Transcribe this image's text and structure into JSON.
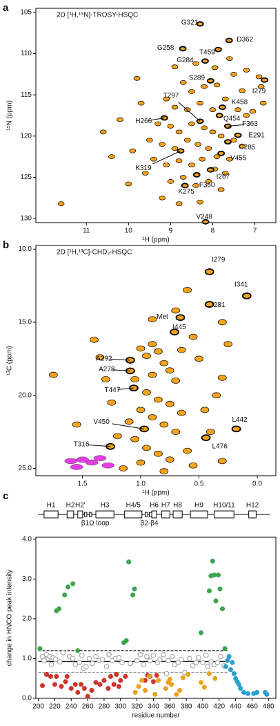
{
  "chart_data": [
    {
      "type": "spectrum",
      "panel_label": "a",
      "title": "2D [¹H,¹⁵N]-TROSY-HSQC",
      "x_label": "¹H (ppm)",
      "y_label": "¹⁵N (ppm)",
      "xlim": [
        12.2,
        6.5
      ],
      "xticks": [
        11,
        10,
        9,
        8,
        7
      ],
      "ylim": [
        104.5,
        130.5
      ],
      "yticks": [
        105,
        110,
        115,
        120,
        125,
        130
      ],
      "y_inverted": true,
      "peak_color": "#f5a31a",
      "outline_color": "#000",
      "peaks": [
        [
          8.5,
          114.6
        ],
        [
          8.2,
          114.0
        ],
        [
          7.9,
          113.8
        ],
        [
          7.5,
          112.5
        ],
        [
          7.2,
          112.0
        ],
        [
          6.9,
          112.8
        ],
        [
          6.85,
          114.0
        ],
        [
          8.7,
          113.5
        ],
        [
          9.1,
          115.5
        ],
        [
          8.9,
          116.5
        ],
        [
          8.6,
          116.8
        ],
        [
          8.3,
          116.0
        ],
        [
          8.0,
          116.8
        ],
        [
          7.7,
          115.5
        ],
        [
          7.4,
          116.8
        ],
        [
          7.2,
          117.5
        ],
        [
          9.3,
          118.5
        ],
        [
          9.0,
          118.8
        ],
        [
          8.8,
          119.5
        ],
        [
          8.5,
          118.5
        ],
        [
          8.2,
          119.0
        ],
        [
          8.0,
          119.5
        ],
        [
          7.8,
          120.0
        ],
        [
          7.5,
          120.5
        ],
        [
          7.3,
          121.2
        ],
        [
          9.5,
          120.5
        ],
        [
          9.2,
          121.0
        ],
        [
          8.9,
          121.5
        ],
        [
          8.6,
          120.5
        ],
        [
          8.35,
          121.0
        ],
        [
          8.1,
          121.5
        ],
        [
          7.9,
          122.5
        ],
        [
          7.6,
          122.8
        ],
        [
          9.4,
          122.8
        ],
        [
          9.1,
          123.5
        ],
        [
          8.8,
          123.0
        ],
        [
          8.5,
          123.5
        ],
        [
          8.25,
          122.8
        ],
        [
          7.95,
          124.0
        ],
        [
          7.7,
          124.5
        ],
        [
          9.6,
          124.5
        ],
        [
          9.0,
          125.5
        ],
        [
          8.7,
          125.0
        ],
        [
          8.4,
          126.0
        ],
        [
          8.1,
          125.5
        ],
        [
          7.8,
          126.5
        ],
        [
          10.2,
          118.0
        ],
        [
          10.6,
          119.5
        ],
        [
          11.6,
          128.2
        ],
        [
          10.0,
          125.8
        ],
        [
          9.8,
          113.0
        ],
        [
          9.7,
          116.0
        ],
        [
          9.9,
          121.8
        ],
        [
          10.4,
          122.5
        ],
        [
          8.3,
          128.0
        ],
        [
          8.8,
          128.2
        ],
        [
          9.2,
          127.5
        ],
        [
          7.05,
          117.0
        ],
        [
          6.8,
          116.0
        ],
        [
          7.6,
          110.6
        ],
        [
          7.95,
          111.7
        ],
        [
          8.4,
          111.2
        ],
        [
          8.9,
          111.6
        ],
        [
          7.3,
          114.5
        ]
      ],
      "annotations": [
        {
          "label": "G321",
          "x": 8.3,
          "y": 106.4
        },
        {
          "label": "D362",
          "x": 7.61,
          "y": 108.4
        },
        {
          "label": "T459",
          "x": 7.87,
          "y": 109.5
        },
        {
          "label": "G258",
          "x": 8.71,
          "y": 109.4
        },
        {
          "label": "G284",
          "x": 8.18,
          "y": 110.9
        },
        {
          "label": "S289",
          "x": 8.05,
          "y": 113.3
        },
        {
          "label": "I279",
          "x": 6.77,
          "y": 113.2
        },
        {
          "label": "K458",
          "x": 7.77,
          "y": 116.5
        },
        {
          "label": "T297",
          "x": 8.3,
          "y": 118.2
        },
        {
          "label": "Q454",
          "x": 7.84,
          "y": 117.5
        },
        {
          "label": "F363",
          "x": 7.64,
          "y": 118.8
        },
        {
          "label": "H266",
          "x": 9.15,
          "y": 117.8
        },
        {
          "label": "E291",
          "x": 7.4,
          "y": 119.9
        },
        {
          "label": "C285",
          "x": 7.64,
          "y": 120.7
        },
        {
          "label": "V455",
          "x": 7.8,
          "y": 122.1
        },
        {
          "label": "K319",
          "x": 8.76,
          "y": 121.8
        },
        {
          "label": "I267",
          "x": 8.05,
          "y": 124.1
        },
        {
          "label": "F360",
          "x": 8.38,
          "y": 124.7
        },
        {
          "label": "K275",
          "x": 8.66,
          "y": 126.0
        },
        {
          "label": "V248",
          "x": 8.17,
          "y": 130.4
        }
      ]
    },
    {
      "type": "spectrum",
      "panel_label": "b",
      "title": "2D [¹H,¹³C]-CHD₂-HSQC",
      "x_label": "¹H (ppm)",
      "y_label": "¹³C (ppm)",
      "xlim": [
        1.9,
        -0.16
      ],
      "xticks": [
        1.5,
        {
          "value": 1,
          "label": "1.0"
        },
        0.5,
        {
          "value": 0,
          "label": "0.0"
        }
      ],
      "ylim": [
        9.75,
        25.5
      ],
      "yticks": [
        {
          "value": 10,
          "label": "10.0"
        },
        {
          "value": 15,
          "label": "15.0"
        },
        {
          "value": 20,
          "label": "20.0"
        },
        {
          "value": 25,
          "label": "25.0"
        }
      ],
      "y_inverted": true,
      "peak_color": "#f5a31a",
      "outline_color": "#000",
      "minor_color": "#e040e0",
      "peaks": [
        [
          0.9,
          16.5
        ],
        [
          0.85,
          17.0
        ],
        [
          0.95,
          17.3
        ],
        [
          1.0,
          16.8
        ],
        [
          0.8,
          17.8
        ],
        [
          0.75,
          18.3
        ],
        [
          0.9,
          18.6
        ],
        [
          1.05,
          18.9
        ],
        [
          0.7,
          19.0
        ],
        [
          0.95,
          19.8
        ],
        [
          0.85,
          20.3
        ],
        [
          0.75,
          20.6
        ],
        [
          1.0,
          21.0
        ],
        [
          0.9,
          21.5
        ],
        [
          0.8,
          22.0
        ],
        [
          0.7,
          22.5
        ],
        [
          0.65,
          21.2
        ],
        [
          1.1,
          21.8
        ],
        [
          1.2,
          22.8
        ],
        [
          1.05,
          23.0
        ],
        [
          0.95,
          23.6
        ],
        [
          0.85,
          24.0
        ],
        [
          0.75,
          24.4
        ],
        [
          0.6,
          23.8
        ],
        [
          0.55,
          24.8
        ],
        [
          1.0,
          24.6
        ],
        [
          1.15,
          25.0
        ],
        [
          0.45,
          21.0
        ],
        [
          0.35,
          20.0
        ],
        [
          0.3,
          18.8
        ],
        [
          0.25,
          16.5
        ],
        [
          0.3,
          15.0
        ],
        [
          0.6,
          12.8
        ],
        [
          0.7,
          14.2
        ],
        [
          1.3,
          18.9
        ],
        [
          1.35,
          17.4
        ],
        [
          1.4,
          16.2
        ],
        [
          1.75,
          18.6
        ],
        [
          1.55,
          22.0
        ],
        [
          0.9,
          14.8
        ],
        [
          0.55,
          16.0
        ],
        [
          0.5,
          17.5
        ],
        [
          0.4,
          22.5
        ],
        [
          0.3,
          24.5
        ],
        [
          0.8,
          25.2
        ],
        [
          1.25,
          20.5
        ],
        [
          0.65,
          16.9
        ]
      ],
      "minor_peaks": [
        [
          1.5,
          24.4
        ],
        [
          1.42,
          24.6
        ],
        [
          1.35,
          24.3
        ],
        [
          1.55,
          24.9
        ],
        [
          1.28,
          24.8
        ],
        [
          1.6,
          24.5
        ]
      ],
      "annotations": [
        {
          "label": "I279",
          "x": 0.41,
          "y": 11.55
        },
        {
          "label": "I341",
          "x": 0.09,
          "y": 13.2
        },
        {
          "label": "I281",
          "x": 0.41,
          "y": 13.78
        },
        {
          "label": "Met",
          "x": 0.66,
          "y": 14.68
        },
        {
          "label": "I445",
          "x": 0.71,
          "y": 15.67
        },
        {
          "label": "A292",
          "x": 1.09,
          "y": 17.6
        },
        {
          "label": "A278",
          "x": 1.09,
          "y": 18.33
        },
        {
          "label": "T447",
          "x": 1.06,
          "y": 19.5
        },
        {
          "label": "V450",
          "x": 0.97,
          "y": 22.3
        },
        {
          "label": "T316",
          "x": 1.26,
          "y": 23.5
        },
        {
          "label": "L442",
          "x": 0.18,
          "y": 22.3
        },
        {
          "label": "L476",
          "x": 0.44,
          "y": 22.9
        }
      ]
    },
    {
      "type": "scatter",
      "panel_label": "c",
      "x_label": "residue number",
      "y_label": "change in HNCO peak intensity",
      "xlim": [
        197,
        489
      ],
      "xticks": [
        200,
        220,
        240,
        260,
        280,
        300,
        320,
        340,
        360,
        380,
        400,
        420,
        440,
        460,
        480
      ],
      "ylim": [
        0,
        4.05
      ],
      "yticks": [
        {
          "value": 0,
          "label": "0.0"
        },
        {
          "value": 1,
          "label": "1.0"
        },
        {
          "value": 2,
          "label": "2.0"
        },
        {
          "value": 3,
          "label": "3.0"
        },
        {
          "value": 4,
          "label": "4.0"
        }
      ],
      "reference_range": [
        200,
        430
      ],
      "reference_lines": [
        {
          "value": 1.2,
          "style": "dashed",
          "color": "#000"
        },
        {
          "value": 0.93,
          "style": "solid",
          "color": "#000"
        },
        {
          "value": 0.65,
          "style": "dashed",
          "color": "#999"
        }
      ],
      "structure": {
        "range": [
          200,
          482
        ],
        "helices": [
          {
            "label": "H1",
            "start": 207,
            "end": 224
          },
          {
            "label": "H2",
            "start": 235,
            "end": 243
          },
          {
            "label": "H2'",
            "start": 248,
            "end": 254
          },
          {
            "label": "H3",
            "start": 270,
            "end": 292
          },
          {
            "label": "H4/5",
            "start": 305,
            "end": 326
          },
          {
            "label": "H6",
            "start": 338,
            "end": 344
          },
          {
            "label": "H7",
            "start": 350,
            "end": 360
          },
          {
            "label": "H8",
            "start": 364,
            "end": 375
          },
          {
            "label": "H9",
            "start": 385,
            "end": 406
          },
          {
            "label": "H10/11",
            "start": 414,
            "end": 438
          },
          {
            "label": "H12",
            "start": 456,
            "end": 465
          }
        ],
        "strands": [
          {
            "start": 256,
            "end": 259
          },
          {
            "start": 262,
            "end": 265
          },
          {
            "start": 330,
            "end": 333
          },
          {
            "start": 335,
            "end": 338
          }
        ],
        "labels": [
          {
            "label": "β1",
            "x": 257
          },
          {
            "label": "Ω loop",
            "x": 274
          },
          {
            "label": "β2-β4",
            "x": 335
          }
        ]
      },
      "series": [
        {
          "color": "#aaa",
          "marker": "open",
          "x": [
            205,
            207,
            210,
            212,
            214,
            216,
            218,
            221,
            226,
            230,
            238,
            242,
            245,
            250,
            253,
            255,
            258,
            262,
            266,
            270,
            274,
            278,
            283,
            286,
            290,
            294,
            298,
            302,
            312,
            320,
            324,
            328,
            332,
            336,
            340,
            345,
            348,
            352,
            356,
            358,
            363,
            366,
            370,
            374,
            378,
            384,
            388,
            392,
            395,
            400,
            404,
            406,
            410,
            414,
            418,
            422,
            426
          ],
          "values": [
            1.05,
            0.95,
            1.1,
            1.0,
            1.05,
            0.85,
            1.02,
            0.98,
            0.92,
            1.15,
            1.05,
            1.0,
            0.85,
            0.9,
            1.08,
            0.75,
            0.8,
            1.0,
            0.88,
            1.05,
            0.95,
            0.98,
            0.8,
            1.1,
            0.95,
            1.0,
            1.02,
            0.9,
            0.88,
            0.95,
            1.1,
            0.85,
            1.05,
            0.95,
            1.08,
            0.9,
            0.98,
            1.1,
            0.62,
            0.95,
            1.05,
            0.85,
            0.9,
            0.98,
            0.65,
            1.0,
            0.82,
            0.9,
            1.02,
            0.9,
            1.08,
            0.8,
            0.92,
            0.85,
            0.9,
            1.05,
            0.82
          ]
        },
        {
          "color": "#3fa34d",
          "marker": "filled",
          "x": [
            202,
            222,
            225,
            232,
            236,
            242,
            248,
            304,
            307,
            310,
            315,
            317,
            398,
            408,
            410,
            412,
            414,
            416,
            419,
            421,
            424,
            427
          ],
          "values": [
            1.25,
            2.2,
            2.25,
            2.6,
            2.8,
            2.88,
            1.2,
            1.4,
            1.45,
            3.43,
            2.6,
            2.75,
            1.65,
            2.7,
            3.08,
            3.45,
            3.1,
            2.45,
            3.1,
            2.75,
            2.25,
            1.25
          ]
        },
        {
          "color": "#d0342c",
          "marker": "filled",
          "x": [
            205,
            210,
            215,
            220,
            222,
            228,
            233,
            235,
            240,
            245,
            248,
            252,
            256,
            260,
            265,
            270,
            275,
            280,
            285,
            288,
            292,
            295,
            298,
            300,
            306,
            330,
            333,
            336,
            340,
            344
          ],
          "values": [
            0.32,
            0.6,
            0.55,
            0.35,
            0.55,
            0.3,
            0.42,
            0.55,
            0.25,
            0.35,
            0.15,
            0.35,
            0.25,
            0.05,
            0.2,
            0.4,
            0.35,
            0.45,
            0.25,
            0.55,
            0.35,
            0.6,
            0.3,
            0.45,
            0.55,
            0.45,
            0.58,
            0.55,
            0.42,
            0.58
          ]
        },
        {
          "color": "#e8a21c",
          "marker": "filled",
          "x": [
            318,
            322,
            326,
            330,
            335,
            342,
            346,
            355,
            358,
            360,
            362,
            368,
            372,
            376,
            382,
            398,
            402,
            408,
            415
          ],
          "values": [
            0.15,
            0.3,
            0.45,
            0.2,
            0.55,
            0.1,
            0.45,
            0.25,
            0.4,
            0.48,
            0.35,
            0.1,
            0.2,
            0.52,
            0.6,
            0.4,
            0.28,
            0.62,
            0.5
          ]
        },
        {
          "color": "#2a9fd0",
          "marker": "filled",
          "x": [
            428,
            430,
            432,
            434,
            436,
            438,
            440,
            442,
            444,
            446,
            450,
            455,
            462,
            466,
            476,
            478
          ],
          "values": [
            0.8,
            0.95,
            1.05,
            0.72,
            0.9,
            0.62,
            0.5,
            0.42,
            0.35,
            0.25,
            0.15,
            0.12,
            0.12,
            0.15,
            0.15,
            0.1
          ]
        }
      ]
    }
  ]
}
